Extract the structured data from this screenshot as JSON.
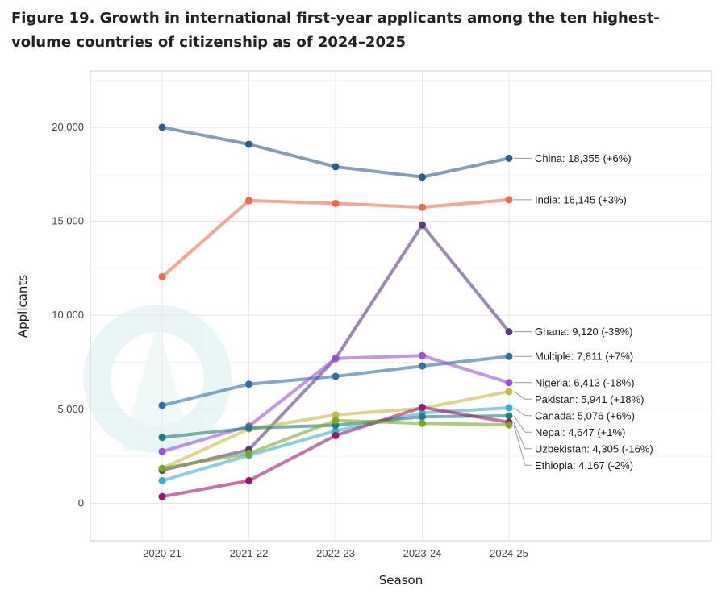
{
  "figure": {
    "title": "Figure 19. Growth in international first-year applicants among the ten highest-volume countries of citizenship as of 2024–2025"
  },
  "chart_data": {
    "type": "line",
    "xlabel": "Season",
    "ylabel": "Applicants",
    "categories": [
      "2020-21",
      "2021-22",
      "2022-23",
      "2023-24",
      "2024-25"
    ],
    "ylim": [
      -2000,
      23000
    ],
    "yticks": [
      0,
      5000,
      10000,
      15000,
      20000
    ],
    "ytick_labels": [
      "0",
      "5,000",
      "10,000",
      "15,000",
      "20,000"
    ],
    "grid": true,
    "series": [
      {
        "name": "China",
        "label": "China: 18,355 (+6%)",
        "color": "#2e5e8e",
        "values": [
          20000,
          19100,
          17900,
          17350,
          18355
        ]
      },
      {
        "name": "India",
        "label": "India: 16,145 (+3%)",
        "color": "#f06a4a",
        "values": [
          12050,
          16100,
          15950,
          15750,
          16145
        ]
      },
      {
        "name": "Ghana",
        "label": "Ghana: 9,120 (-38%)",
        "color": "#5a3a7e",
        "values": [
          1750,
          2850,
          7700,
          14800,
          9120
        ]
      },
      {
        "name": "Multiple",
        "label": "Multiple: 7,811 (+7%)",
        "color": "#2f6fa8",
        "values": [
          5200,
          6330,
          6750,
          7300,
          7811
        ]
      },
      {
        "name": "Nigeria",
        "label": "Nigeria: 6,413 (-18%)",
        "color": "#9b4fe0",
        "values": [
          2750,
          4100,
          7700,
          7850,
          6413
        ]
      },
      {
        "name": "Pakistan",
        "label": "Pakistan: 5,941 (+18%)",
        "color": "#c9b93a",
        "values": [
          1850,
          3950,
          4700,
          5050,
          5941
        ]
      },
      {
        "name": "Canada",
        "label": "Canada: 5,076 (+6%)",
        "color": "#3aaed0",
        "values": [
          1200,
          2550,
          3850,
          4800,
          5076
        ]
      },
      {
        "name": "Nepal",
        "label": "Nepal: 4,647 (+1%)",
        "color": "#1d7e7e",
        "values": [
          3500,
          4000,
          4150,
          4600,
          4647
        ]
      },
      {
        "name": "Uzbekistan",
        "label": "Uzbekistan: 4,305 (-16%)",
        "color": "#a0156e",
        "values": [
          350,
          1200,
          3600,
          5100,
          4305
        ]
      },
      {
        "name": "Ethiopia",
        "label": "Ethiopia: 4,167 (-2%)",
        "color": "#7aa820",
        "values": [
          1850,
          2650,
          4400,
          4250,
          4167
        ]
      }
    ]
  }
}
